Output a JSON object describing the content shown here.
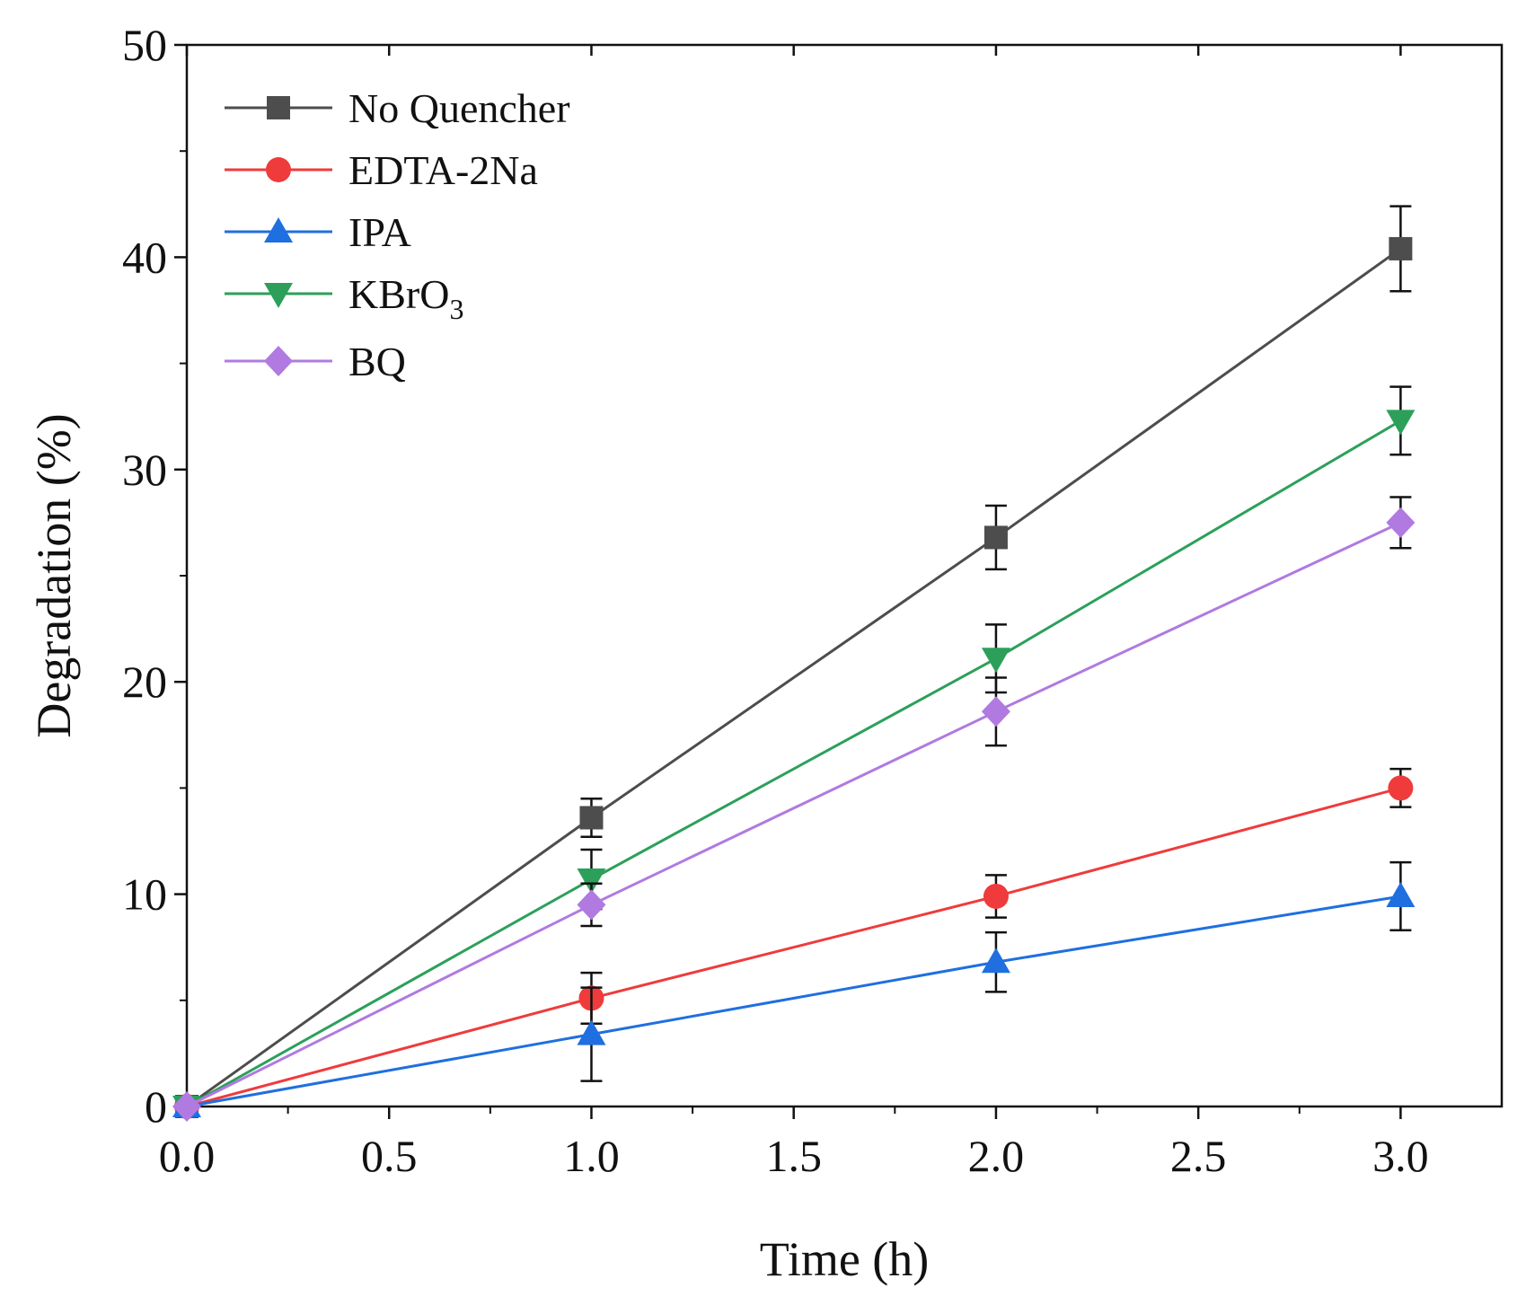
{
  "chart_data": {
    "type": "line",
    "xlabel": "Time (h)",
    "ylabel": "Degradation (%)",
    "xlim": [
      0,
      3.25
    ],
    "ylim": [
      0,
      50
    ],
    "x_ticks": [
      "0.0",
      "0.5",
      "1.0",
      "1.5",
      "2.0",
      "2.5",
      "3.0"
    ],
    "y_ticks": [
      "0",
      "10",
      "20",
      "30",
      "40",
      "50"
    ],
    "grid": false,
    "legend_position": "top-left",
    "x": [
      0,
      1,
      2,
      3
    ],
    "series": [
      {
        "name": "No Quencher",
        "name_main": "No Quencher",
        "name_sub": "",
        "color": "#4d4d4d",
        "marker": "square",
        "values": [
          0,
          13.6,
          26.8,
          40.4
        ],
        "errors": [
          0,
          0.9,
          1.5,
          2.0
        ]
      },
      {
        "name": "EDTA-2Na",
        "name_main": "EDTA-2Na",
        "name_sub": "",
        "color": "#ef3b3b",
        "marker": "circle",
        "values": [
          0,
          5.1,
          9.9,
          15.0
        ],
        "errors": [
          0,
          1.2,
          1.0,
          0.9
        ]
      },
      {
        "name": "IPA",
        "name_main": "IPA",
        "name_sub": "",
        "color": "#1f6fe0",
        "marker": "triangle-up",
        "values": [
          0,
          3.4,
          6.8,
          9.9
        ],
        "errors": [
          0,
          2.2,
          1.4,
          1.6
        ]
      },
      {
        "name": "KBrO3",
        "name_main": "KBrO",
        "name_sub": "3",
        "color": "#2ca05a",
        "marker": "triangle-down",
        "values": [
          0,
          10.7,
          21.1,
          32.3
        ],
        "errors": [
          0,
          1.4,
          1.6,
          1.6
        ]
      },
      {
        "name": "BQ",
        "name_main": "BQ",
        "name_sub": "",
        "color": "#b07ae0",
        "marker": "diamond",
        "values": [
          0,
          9.5,
          18.6,
          27.5
        ],
        "errors": [
          0,
          1.0,
          1.6,
          1.2
        ]
      }
    ]
  }
}
